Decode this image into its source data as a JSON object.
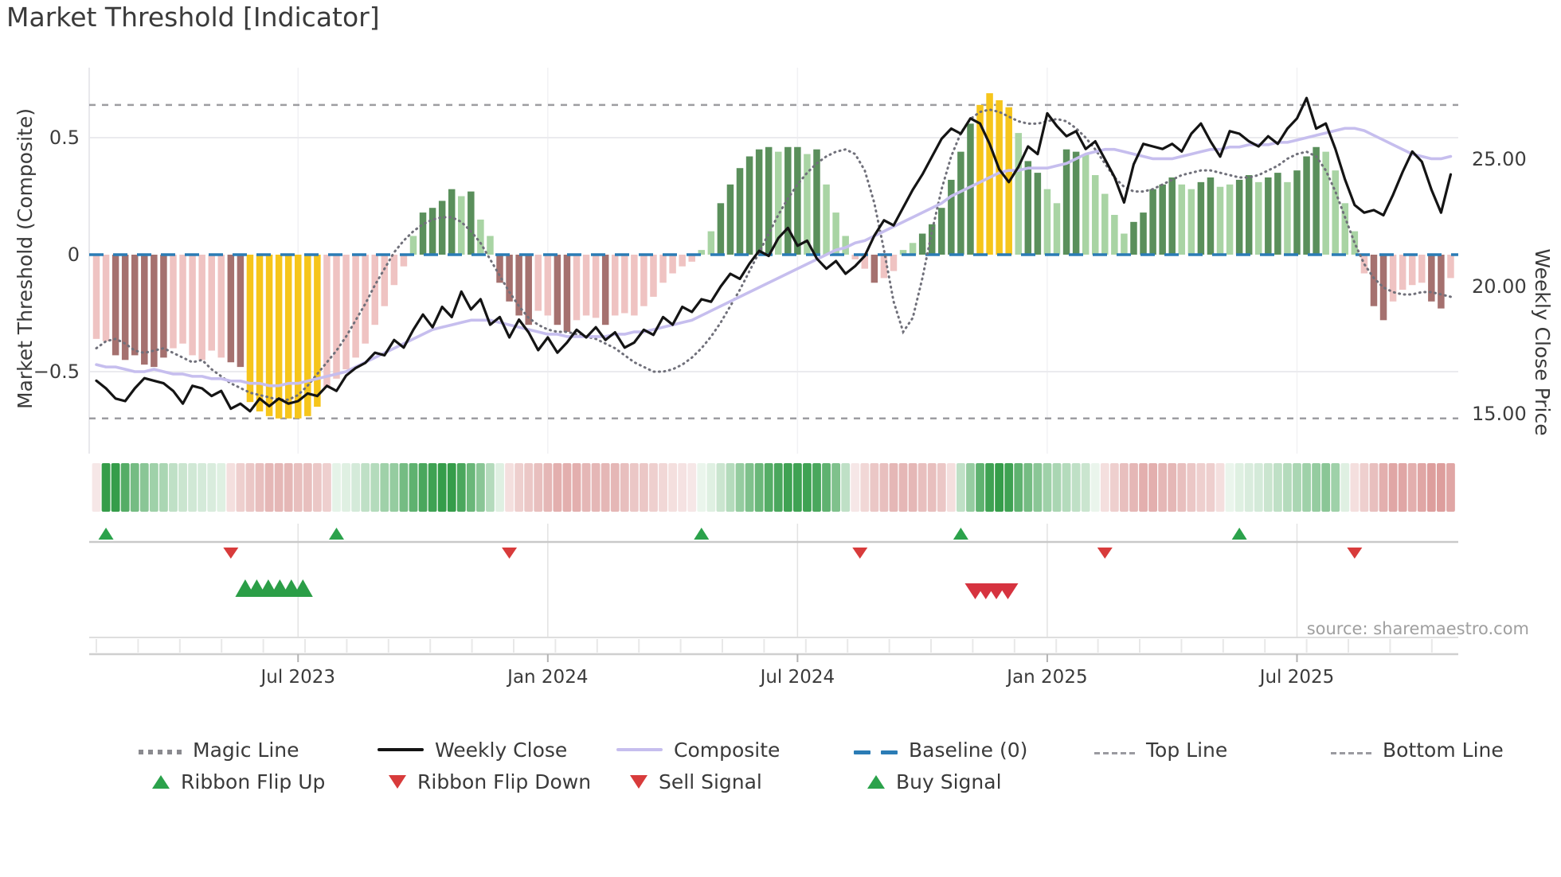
{
  "title": "Market Threshold [Indicator]",
  "source_text": "source: sharemaestro.com",
  "colors": {
    "bar_light_pink": "#EFC3C2",
    "bar_dark_mauve": "#A5716F",
    "bar_light_green": "#A9D4A4",
    "bar_dark_green": "#5A8F5B",
    "bar_yellow": "#F6C51B",
    "weekly_close_line": "#141414",
    "composite_line": "#c6beee",
    "magic_line": "#70707a",
    "baseline": "#2b7cb5",
    "threshold_dashed": "#9d9da1",
    "signal_green": "#2ba24b",
    "signal_red": "#d83b3b",
    "ribbon_green_max": "#2a9840",
    "ribbon_red_max": "#c65e5c",
    "text_dark": "#3a3a3a",
    "text_muted": "#9f9f9f"
  },
  "axes": {
    "left_label": "Market Threshold (Composite)",
    "right_label": "Weekly Close Price",
    "left_ticks": [
      {
        "value": 0.5,
        "label": "0.5"
      },
      {
        "value": 0,
        "label": "0"
      },
      {
        "value": -0.5,
        "label": "−0.5"
      }
    ],
    "right_ticks": [
      {
        "value": 25,
        "label": "25.00"
      },
      {
        "value": 20,
        "label": "20.00"
      },
      {
        "value": 15,
        "label": "15.00"
      }
    ],
    "x_ticks": [
      {
        "week": 21,
        "label": "Jul 2023"
      },
      {
        "week": 47,
        "label": "Jan 2024"
      },
      {
        "week": 73,
        "label": "Jul 2024"
      },
      {
        "week": 99,
        "label": "Jan 2025"
      },
      {
        "week": 125,
        "label": "Jul 2025"
      }
    ]
  },
  "legend": {
    "row1": [
      {
        "label": "Magic Line",
        "swatch": "magic"
      },
      {
        "label": "Weekly Close",
        "swatch": "close"
      },
      {
        "label": "Composite",
        "swatch": "composite"
      },
      {
        "label": "Baseline (0)",
        "swatch": "baseline"
      },
      {
        "label": "Top Line",
        "swatch": "topline"
      },
      {
        "label": "Bottom Line",
        "swatch": "bottomline"
      }
    ],
    "row2": [
      {
        "label": "Ribbon Flip Up",
        "swatch": "flip-up"
      },
      {
        "label": "Ribbon Flip Down",
        "swatch": "flip-down"
      },
      {
        "label": "Sell Signal",
        "swatch": "sell"
      },
      {
        "label": "Buy Signal",
        "swatch": "buy"
      }
    ]
  },
  "chart_data": {
    "type": "combo",
    "x_unit": "weekly",
    "n_points": 142,
    "baseline_value": 0,
    "top_line_value": 0.64,
    "bottom_line_value": -0.7,
    "left_ylim": [
      -0.85,
      0.8
    ],
    "right_ylim": [
      13.9,
      28.6
    ],
    "bars": {
      "values": [
        -0.36,
        -0.37,
        -0.43,
        -0.45,
        -0.43,
        -0.47,
        -0.48,
        -0.44,
        -0.4,
        -0.38,
        -0.43,
        -0.45,
        -0.41,
        -0.44,
        -0.46,
        -0.48,
        -0.63,
        -0.67,
        -0.69,
        -0.7,
        -0.7,
        -0.7,
        -0.69,
        -0.65,
        -0.57,
        -0.53,
        -0.49,
        -0.44,
        -0.38,
        -0.3,
        -0.22,
        -0.13,
        -0.05,
        0.08,
        0.18,
        0.2,
        0.23,
        0.28,
        0.25,
        0.27,
        0.15,
        0.08,
        -0.12,
        -0.2,
        -0.26,
        -0.3,
        -0.24,
        -0.26,
        -0.3,
        -0.33,
        -0.28,
        -0.26,
        -0.27,
        -0.3,
        -0.26,
        -0.25,
        -0.26,
        -0.22,
        -0.18,
        -0.12,
        -0.08,
        -0.05,
        -0.03,
        0.02,
        0.1,
        0.22,
        0.3,
        0.37,
        0.42,
        0.45,
        0.46,
        0.44,
        0.46,
        0.46,
        0.43,
        0.45,
        0.3,
        0.18,
        0.08,
        -0.02,
        -0.06,
        -0.12,
        -0.1,
        -0.07,
        0.02,
        0.05,
        0.09,
        0.13,
        0.2,
        0.32,
        0.44,
        0.56,
        0.64,
        0.69,
        0.66,
        0.63,
        0.52,
        0.4,
        0.35,
        0.28,
        0.22,
        0.45,
        0.44,
        0.43,
        0.34,
        0.26,
        0.17,
        0.09,
        0.14,
        0.18,
        0.28,
        0.3,
        0.33,
        0.3,
        0.28,
        0.31,
        0.33,
        0.29,
        0.3,
        0.32,
        0.34,
        0.31,
        0.33,
        0.35,
        0.31,
        0.36,
        0.42,
        0.46,
        0.44,
        0.36,
        0.22,
        0.1,
        -0.08,
        -0.22,
        -0.28,
        -0.2,
        -0.15,
        -0.13,
        -0.12,
        -0.2,
        -0.23,
        -0.1
      ],
      "palette": [
        "lp",
        "lp",
        "dm",
        "dm",
        "dm",
        "dm",
        "dm",
        "dm",
        "lp",
        "lp",
        "lp",
        "lp",
        "lp",
        "lp",
        "dm",
        "dm",
        "yl",
        "yl",
        "yl",
        "yl",
        "yl",
        "yl",
        "yl",
        "yl",
        "lp",
        "lp",
        "lp",
        "lp",
        "lp",
        "lp",
        "lp",
        "lp",
        "lp",
        "lg",
        "dg",
        "dg",
        "dg",
        "dg",
        "lg",
        "dg",
        "lg",
        "lg",
        "dm",
        "dm",
        "dm",
        "dm",
        "lp",
        "lp",
        "dm",
        "dm",
        "lp",
        "lp",
        "lp",
        "dm",
        "lp",
        "lp",
        "lp",
        "lp",
        "lp",
        "lp",
        "lp",
        "lp",
        "lp",
        "lg",
        "lg",
        "dg",
        "dg",
        "dg",
        "dg",
        "dg",
        "dg",
        "lg",
        "dg",
        "dg",
        "lg",
        "dg",
        "lg",
        "lg",
        "lg",
        "lp",
        "lp",
        "dm",
        "lp",
        "lp",
        "lg",
        "lg",
        "dg",
        "dg",
        "dg",
        "dg",
        "dg",
        "dg",
        "yl",
        "yl",
        "yl",
        "yl",
        "lg",
        "dg",
        "dg",
        "lg",
        "lg",
        "dg",
        "dg",
        "lg",
        "lg",
        "lg",
        "lg",
        "lg",
        "dg",
        "dg",
        "dg",
        "dg",
        "dg",
        "lg",
        "lg",
        "dg",
        "dg",
        "lg",
        "lg",
        "dg",
        "dg",
        "lg",
        "dg",
        "dg",
        "lg",
        "dg",
        "dg",
        "dg",
        "lg",
        "lg",
        "lg",
        "lg",
        "lp",
        "dm",
        "dm",
        "lp",
        "lp",
        "lp",
        "lp",
        "dm",
        "dm",
        "lp"
      ]
    },
    "weekly_close": [
      16.3,
      16.0,
      15.6,
      15.5,
      16.0,
      16.4,
      16.3,
      16.2,
      15.9,
      15.4,
      16.1,
      16.0,
      15.7,
      15.9,
      15.2,
      15.4,
      15.1,
      15.6,
      15.3,
      15.6,
      15.4,
      15.5,
      15.8,
      15.7,
      16.1,
      15.9,
      16.5,
      16.8,
      17.0,
      17.4,
      17.3,
      17.9,
      17.6,
      18.3,
      18.9,
      18.4,
      19.2,
      18.8,
      19.8,
      19.1,
      19.5,
      18.5,
      18.8,
      18.0,
      18.7,
      18.2,
      17.5,
      18.0,
      17.4,
      17.8,
      18.3,
      18.0,
      18.4,
      17.9,
      18.2,
      17.6,
      17.8,
      18.3,
      18.1,
      18.8,
      18.5,
      19.2,
      19.0,
      19.5,
      19.4,
      20.0,
      20.5,
      20.3,
      20.9,
      21.4,
      21.2,
      21.9,
      22.3,
      21.6,
      21.8,
      21.1,
      20.7,
      21.0,
      20.5,
      20.8,
      21.2,
      22.0,
      22.6,
      22.4,
      23.1,
      23.8,
      24.4,
      25.1,
      25.8,
      26.2,
      26.0,
      26.6,
      26.4,
      25.6,
      24.6,
      24.1,
      24.7,
      25.5,
      25.2,
      26.8,
      26.3,
      25.9,
      26.1,
      25.4,
      25.7,
      25.0,
      24.3,
      23.3,
      24.8,
      25.6,
      25.5,
      25.4,
      25.6,
      25.3,
      26.0,
      26.4,
      25.7,
      25.1,
      26.1,
      26.0,
      25.7,
      25.5,
      25.9,
      25.6,
      26.2,
      26.6,
      27.4,
      26.2,
      26.4,
      25.4,
      24.2,
      23.2,
      22.9,
      23.0,
      22.8,
      23.6,
      24.5,
      25.3,
      24.9,
      23.8,
      22.9,
      24.4
    ],
    "composite": [
      -0.47,
      -0.48,
      -0.48,
      -0.49,
      -0.5,
      -0.5,
      -0.49,
      -0.5,
      -0.51,
      -0.51,
      -0.52,
      -0.52,
      -0.53,
      -0.53,
      -0.54,
      -0.54,
      -0.55,
      -0.55,
      -0.56,
      -0.56,
      -0.55,
      -0.55,
      -0.54,
      -0.53,
      -0.52,
      -0.51,
      -0.5,
      -0.48,
      -0.46,
      -0.44,
      -0.42,
      -0.4,
      -0.38,
      -0.36,
      -0.34,
      -0.32,
      -0.31,
      -0.3,
      -0.29,
      -0.28,
      -0.28,
      -0.28,
      -0.29,
      -0.3,
      -0.31,
      -0.32,
      -0.33,
      -0.34,
      -0.34,
      -0.35,
      -0.35,
      -0.35,
      -0.35,
      -0.35,
      -0.34,
      -0.34,
      -0.33,
      -0.33,
      -0.32,
      -0.31,
      -0.3,
      -0.29,
      -0.28,
      -0.26,
      -0.24,
      -0.22,
      -0.2,
      -0.18,
      -0.16,
      -0.14,
      -0.12,
      -0.1,
      -0.08,
      -0.06,
      -0.04,
      -0.02,
      0.0,
      0.02,
      0.03,
      0.05,
      0.06,
      0.08,
      0.1,
      0.12,
      0.14,
      0.16,
      0.18,
      0.2,
      0.22,
      0.25,
      0.27,
      0.29,
      0.31,
      0.33,
      0.35,
      0.36,
      0.36,
      0.37,
      0.37,
      0.37,
      0.38,
      0.39,
      0.41,
      0.43,
      0.44,
      0.45,
      0.45,
      0.44,
      0.43,
      0.42,
      0.41,
      0.41,
      0.41,
      0.42,
      0.43,
      0.44,
      0.45,
      0.45,
      0.46,
      0.46,
      0.47,
      0.47,
      0.47,
      0.48,
      0.48,
      0.49,
      0.5,
      0.51,
      0.52,
      0.53,
      0.54,
      0.54,
      0.53,
      0.51,
      0.49,
      0.47,
      0.45,
      0.43,
      0.42,
      0.41,
      0.41,
      0.42
    ],
    "magic_line": [
      -0.4,
      -0.37,
      -0.36,
      -0.38,
      -0.41,
      -0.42,
      -0.41,
      -0.4,
      -0.42,
      -0.44,
      -0.46,
      -0.45,
      -0.49,
      -0.52,
      -0.55,
      -0.57,
      -0.59,
      -0.6,
      -0.61,
      -0.62,
      -0.62,
      -0.6,
      -0.56,
      -0.51,
      -0.46,
      -0.41,
      -0.35,
      -0.28,
      -0.21,
      -0.13,
      -0.06,
      0.01,
      0.06,
      0.1,
      0.13,
      0.15,
      0.16,
      0.16,
      0.14,
      0.1,
      0.05,
      -0.02,
      -0.09,
      -0.16,
      -0.22,
      -0.27,
      -0.3,
      -0.32,
      -0.33,
      -0.33,
      -0.34,
      -0.35,
      -0.36,
      -0.38,
      -0.4,
      -0.43,
      -0.46,
      -0.48,
      -0.5,
      -0.5,
      -0.49,
      -0.47,
      -0.44,
      -0.4,
      -0.35,
      -0.29,
      -0.22,
      -0.15,
      -0.07,
      0.01,
      0.09,
      0.17,
      0.24,
      0.3,
      0.35,
      0.39,
      0.42,
      0.44,
      0.45,
      0.43,
      0.36,
      0.22,
      0.02,
      -0.2,
      -0.33,
      -0.27,
      -0.1,
      0.1,
      0.28,
      0.42,
      0.52,
      0.58,
      0.61,
      0.62,
      0.61,
      0.59,
      0.57,
      0.56,
      0.56,
      0.57,
      0.58,
      0.57,
      0.54,
      0.5,
      0.45,
      0.39,
      0.33,
      0.29,
      0.27,
      0.27,
      0.28,
      0.3,
      0.32,
      0.34,
      0.35,
      0.36,
      0.36,
      0.35,
      0.34,
      0.33,
      0.33,
      0.34,
      0.36,
      0.38,
      0.41,
      0.43,
      0.44,
      0.42,
      0.36,
      0.27,
      0.16,
      0.05,
      -0.04,
      -0.1,
      -0.14,
      -0.16,
      -0.17,
      -0.17,
      -0.16,
      -0.16,
      -0.17,
      -0.18
    ],
    "ribbon": [
      -0.15,
      0.95,
      0.95,
      0.8,
      0.65,
      0.55,
      0.45,
      0.4,
      0.3,
      0.25,
      0.22,
      0.2,
      0.18,
      0.15,
      -0.2,
      -0.3,
      -0.35,
      -0.4,
      -0.45,
      -0.45,
      -0.45,
      -0.4,
      -0.4,
      -0.35,
      -0.3,
      0.12,
      0.15,
      0.2,
      0.3,
      0.35,
      0.45,
      0.5,
      0.65,
      0.75,
      0.85,
      0.9,
      0.95,
      0.95,
      0.85,
      0.7,
      0.55,
      0.35,
      0.15,
      -0.2,
      -0.3,
      -0.35,
      -0.4,
      -0.45,
      -0.5,
      -0.5,
      -0.5,
      -0.45,
      -0.45,
      -0.45,
      -0.45,
      -0.4,
      -0.35,
      -0.35,
      -0.3,
      -0.25,
      -0.2,
      -0.18,
      -0.15,
      0.1,
      0.15,
      0.25,
      0.35,
      0.5,
      0.6,
      0.7,
      0.8,
      0.85,
      0.9,
      0.9,
      0.9,
      0.85,
      0.75,
      0.6,
      0.3,
      -0.15,
      -0.25,
      -0.35,
      -0.4,
      -0.45,
      -0.45,
      -0.45,
      -0.4,
      -0.4,
      -0.35,
      -0.2,
      0.3,
      0.5,
      0.75,
      0.9,
      0.95,
      0.9,
      0.75,
      0.65,
      0.55,
      0.45,
      0.4,
      0.35,
      0.3,
      0.25,
      0.1,
      -0.2,
      -0.3,
      -0.4,
      -0.45,
      -0.5,
      -0.5,
      -0.45,
      -0.45,
      -0.4,
      -0.35,
      -0.3,
      -0.3,
      -0.2,
      0.1,
      0.15,
      0.18,
      0.2,
      0.25,
      0.3,
      0.35,
      0.4,
      0.45,
      0.5,
      0.55,
      0.45,
      0.15,
      -0.2,
      -0.3,
      -0.4,
      -0.5,
      -0.55,
      -0.55,
      -0.5,
      -0.55,
      -0.6,
      -0.6,
      -0.55
    ],
    "signals": {
      "ribbon_flip_up_weeks": [
        1,
        25,
        63,
        90,
        119
      ],
      "ribbon_flip_down_weeks": [
        14,
        43,
        79.5,
        105,
        131
      ],
      "buy_signal_weeks": [
        15.5,
        16.7,
        17.9,
        19.1,
        20.3,
        21.5
      ],
      "sell_signal_weeks": [
        91.5,
        92.6,
        93.7,
        94.9
      ]
    }
  }
}
